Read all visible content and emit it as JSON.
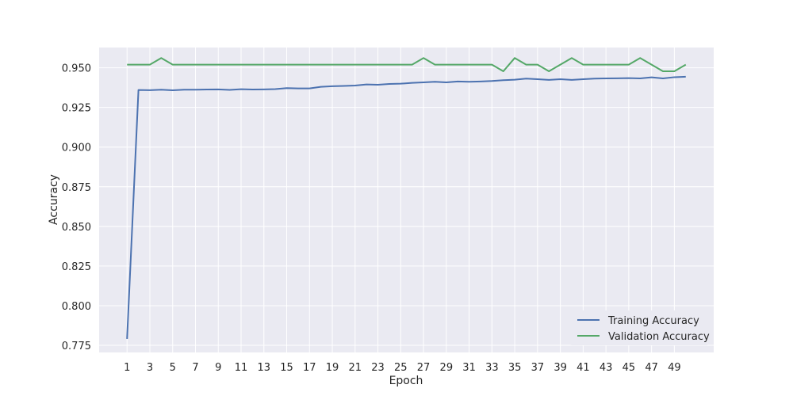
{
  "chart_data": {
    "type": "line",
    "title": "",
    "xlabel": "Epoch",
    "ylabel": "Accuracy",
    "xlim": [
      -1.45,
      52.45
    ],
    "ylim": [
      0.7705,
      0.9628
    ],
    "grid": true,
    "legend_position": "bottom-right",
    "x_ticks": [
      1,
      3,
      5,
      7,
      9,
      11,
      13,
      15,
      17,
      19,
      21,
      23,
      25,
      27,
      29,
      31,
      33,
      35,
      37,
      39,
      41,
      43,
      45,
      47,
      49
    ],
    "y_ticks": [
      0.775,
      0.8,
      0.825,
      0.85,
      0.875,
      0.9,
      0.925,
      0.95
    ],
    "y_tick_labels": [
      "0.775",
      "0.800",
      "0.825",
      "0.850",
      "0.875",
      "0.900",
      "0.925",
      "0.950"
    ],
    "x": [
      1,
      2,
      3,
      4,
      5,
      6,
      7,
      8,
      9,
      10,
      11,
      12,
      13,
      14,
      15,
      16,
      17,
      18,
      19,
      20,
      21,
      22,
      23,
      24,
      25,
      26,
      27,
      28,
      29,
      30,
      31,
      32,
      33,
      34,
      35,
      36,
      37,
      38,
      39,
      40,
      41,
      42,
      43,
      44,
      45,
      46,
      47,
      48,
      49,
      50
    ],
    "series": [
      {
        "name": "Training Accuracy",
        "color": "#4c72b0",
        "values": [
          0.779,
          0.936,
          0.9359,
          0.9362,
          0.9358,
          0.9362,
          0.9362,
          0.9363,
          0.9364,
          0.9361,
          0.9365,
          0.9363,
          0.9364,
          0.9366,
          0.9372,
          0.937,
          0.937,
          0.938,
          0.9384,
          0.9386,
          0.9388,
          0.9395,
          0.9393,
          0.9398,
          0.94,
          0.9405,
          0.9408,
          0.9412,
          0.9408,
          0.9414,
          0.9412,
          0.9414,
          0.9417,
          0.9422,
          0.9425,
          0.9432,
          0.9428,
          0.9424,
          0.9428,
          0.9424,
          0.9428,
          0.9432,
          0.9433,
          0.9434,
          0.9435,
          0.9433,
          0.944,
          0.9433,
          0.9441,
          0.9444
        ]
      },
      {
        "name": "Validation Accuracy",
        "color": "#55a868",
        "values": [
          0.952,
          0.952,
          0.952,
          0.9562,
          0.952,
          0.952,
          0.952,
          0.952,
          0.952,
          0.952,
          0.952,
          0.952,
          0.952,
          0.952,
          0.952,
          0.952,
          0.952,
          0.952,
          0.952,
          0.952,
          0.952,
          0.952,
          0.952,
          0.952,
          0.952,
          0.952,
          0.9562,
          0.952,
          0.952,
          0.952,
          0.952,
          0.952,
          0.952,
          0.9478,
          0.9562,
          0.952,
          0.952,
          0.9478,
          0.952,
          0.9562,
          0.952,
          0.952,
          0.952,
          0.952,
          0.952,
          0.9562,
          0.952,
          0.9478,
          0.9478,
          0.952
        ]
      }
    ]
  }
}
